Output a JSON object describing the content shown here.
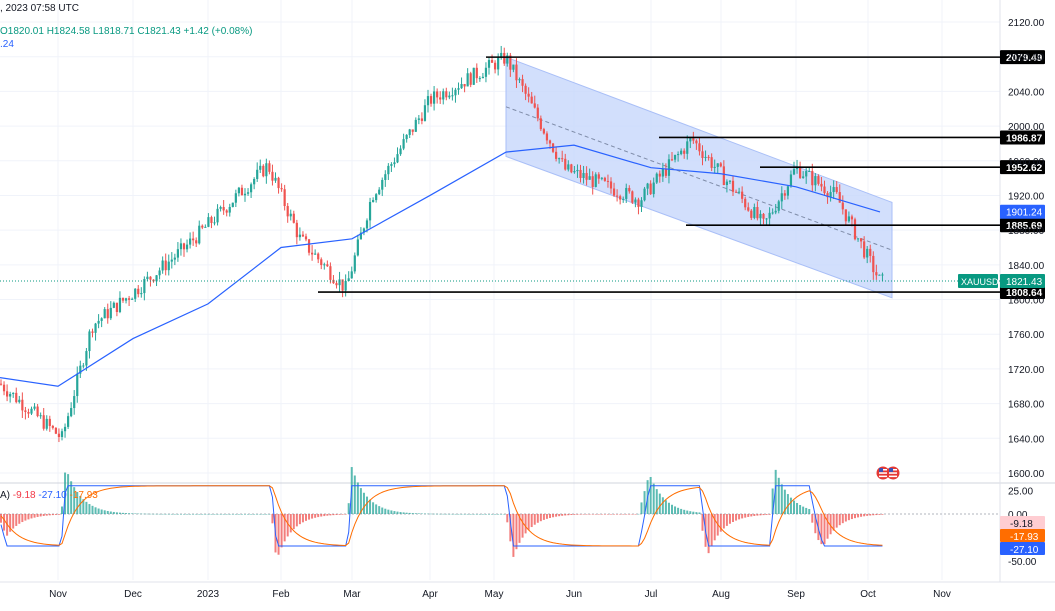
{
  "header": {
    "date_fragment": ", 2023 07:58 UTC",
    "ohlc_text": "O1820.01 H1824.58 L1818.71 C1821.43 +1.42 (+0.08%)",
    "ma_value": ".24"
  },
  "macd_legend": {
    "prefix": "A)",
    "v1": "-9.18",
    "v2": "-27.10",
    "v3": "-17.93"
  },
  "colors": {
    "up": "#26a69a",
    "down": "#ef5350",
    "ma": "#2962ff",
    "channel_fill": "#c7d7fb",
    "channel_line": "#a9bff7",
    "macd_line": "#2962ff",
    "signal_line": "#ff6d00",
    "hist_up": "#26a69a",
    "hist_down": "#ef5350",
    "price_label_bg": "#089981",
    "ma_label_bg": "#2962ff",
    "level_label_bg": "#000000"
  },
  "chart_data": {
    "type": "candlestick",
    "symbol": "XAUUSD",
    "price_axis": {
      "range": [
        1580,
        2140
      ],
      "ticks": [
        "2120.00",
        "2080.00",
        "2040.00",
        "2000.00",
        "1960.00",
        "1920.00",
        "1880.00",
        "1840.00",
        "1800.00",
        "1760.00",
        "1720.00",
        "1680.00",
        "1640.00",
        "1600.00"
      ]
    },
    "x_axis": {
      "labels": [
        "Nov",
        "Dec",
        "2023",
        "Feb",
        "Mar",
        "Apr",
        "May",
        "Jun",
        "Jul",
        "Aug",
        "Sep",
        "Oct",
        "Nov"
      ]
    },
    "key_points": [
      {
        "x": "Oct 2022",
        "y": 1705
      },
      {
        "x": "Oct 2022",
        "y": 1640
      },
      {
        "x": "Nov 2022",
        "y": 1770
      },
      {
        "x": "Dec 2022",
        "y": 1810
      },
      {
        "x": "2023",
        "y": 1860
      },
      {
        "x": "Feb 2023",
        "y": 1955
      },
      {
        "x": "Feb 2023",
        "y": 1870
      },
      {
        "x": "Mar 2023",
        "y": 1812
      },
      {
        "x": "Mar 2023",
        "y": 1920
      },
      {
        "x": "Apr 2023",
        "y": 2030
      },
      {
        "x": "May 2023",
        "y": 2079
      },
      {
        "x": "Jun 2023",
        "y": 1950
      },
      {
        "x": "Jul 2023",
        "y": 1915
      },
      {
        "x": "Jul 2023",
        "y": 1985
      },
      {
        "x": "Aug 2023",
        "y": 1885
      },
      {
        "x": "Sep 2023",
        "y": 1952
      },
      {
        "x": "Sep 2023",
        "y": 1920
      },
      {
        "x": "Oct 2023",
        "y": 1821
      }
    ],
    "ma_points": [
      {
        "x": "Oct 2022",
        "y": 1710
      },
      {
        "x": "Nov 2022",
        "y": 1700
      },
      {
        "x": "Dec 2022",
        "y": 1755
      },
      {
        "x": "2023",
        "y": 1795
      },
      {
        "x": "Feb 2023",
        "y": 1860
      },
      {
        "x": "Mar 2023",
        "y": 1870
      },
      {
        "x": "Apr 2023",
        "y": 1920
      },
      {
        "x": "May 2023",
        "y": 1970
      },
      {
        "x": "Jun 2023",
        "y": 1978
      },
      {
        "x": "Jul 2023",
        "y": 1952
      },
      {
        "x": "Aug 2023",
        "y": 1945
      },
      {
        "x": "Sep 2023",
        "y": 1930
      },
      {
        "x": "Oct 2023",
        "y": 1901
      }
    ],
    "horizontal_levels": [
      {
        "label": "2079.49",
        "value": 2079.49
      },
      {
        "label": "1986.87",
        "value": 1986.87
      },
      {
        "label": "1952.62",
        "value": 1952.62
      },
      {
        "label": "1885.69",
        "value": 1885.69
      },
      {
        "label": "1808.64",
        "value": 1808.64
      }
    ],
    "current_price": {
      "symbol": "XAUUSD",
      "label": "1821.43",
      "value": 1821.43
    },
    "ma_label": {
      "label": "1901.24",
      "value": 1901.24
    },
    "macd": {
      "axis_ticks": [
        "25.00",
        "0.00",
        "-50.00"
      ],
      "range": [
        -55,
        30
      ],
      "value_labels": [
        {
          "label": "-9.18",
          "value": -9.18
        },
        {
          "label": "-17.93",
          "value": -17.93
        },
        {
          "label": "-27.10",
          "value": -27.1
        }
      ]
    }
  }
}
